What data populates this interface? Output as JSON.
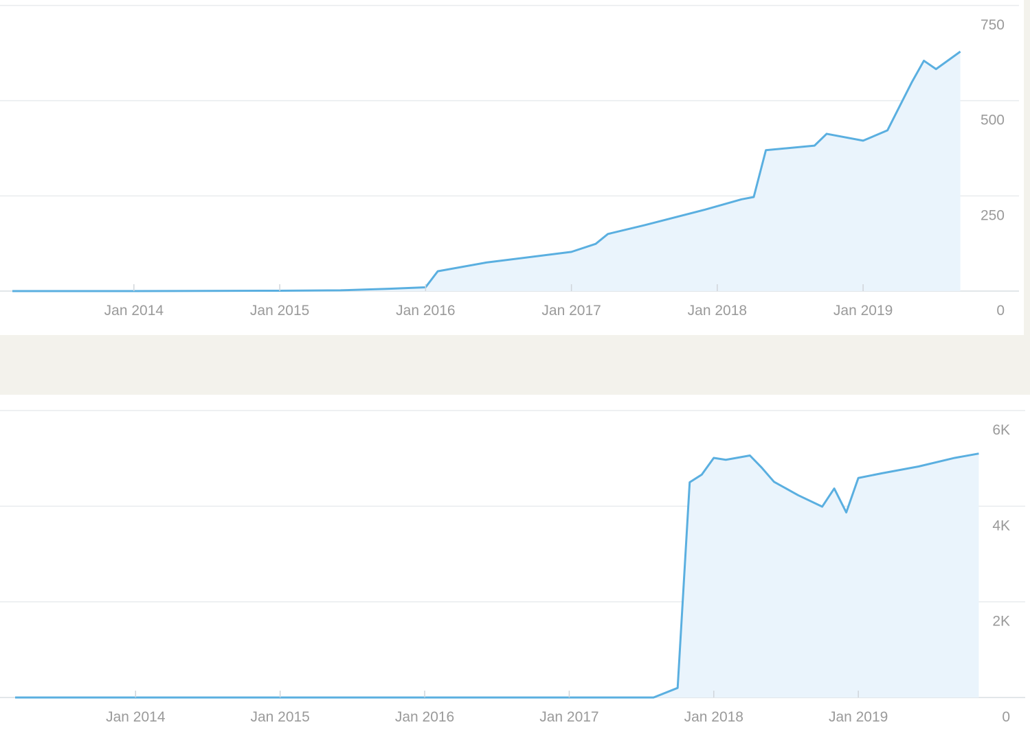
{
  "chart_data": [
    {
      "type": "area",
      "color": "#5aafe0",
      "fill": "#eaf4fc",
      "grid": true,
      "x": [
        "2013-03",
        "2014-01",
        "2015-01",
        "2015-06",
        "2015-10",
        "2016-01",
        "2016-02",
        "2016-06",
        "2017-01",
        "2017-03",
        "2017-04",
        "2017-07",
        "2017-12",
        "2018-03",
        "2018-04",
        "2018-05",
        "2018-09",
        "2018-10",
        "2019-01",
        "2019-03",
        "2019-04",
        "2019-05",
        "2019-06",
        "2019-07",
        "2019-09"
      ],
      "values": [
        0,
        0,
        1,
        2,
        6,
        10,
        52,
        75,
        103,
        124,
        150,
        173,
        214,
        241,
        247,
        370,
        382,
        413,
        395,
        422,
        485,
        548,
        605,
        583,
        629
      ],
      "xlim": [
        "2013-03",
        "2019-11"
      ],
      "xticks": [
        {
          "value": "2014-01",
          "label": "Jan 2014"
        },
        {
          "value": "2015-01",
          "label": "Jan 2015"
        },
        {
          "value": "2016-01",
          "label": "Jan 2016"
        },
        {
          "value": "2017-01",
          "label": "Jan 2017"
        },
        {
          "value": "2018-01",
          "label": "Jan 2018"
        },
        {
          "value": "2019-01",
          "label": "Jan 2019"
        }
      ],
      "ylim": [
        0,
        750
      ],
      "yticks": [
        0,
        250,
        500,
        750
      ]
    },
    {
      "type": "area",
      "color": "#5aafe0",
      "fill": "#eaf4fc",
      "grid": true,
      "x": [
        "2013-03",
        "2017-08",
        "2017-10",
        "2017-11",
        "2017-12",
        "2018-01",
        "2018-02",
        "2018-04",
        "2018-05",
        "2018-06",
        "2018-08",
        "2018-10",
        "2018-11",
        "2018-12",
        "2019-01",
        "2019-03",
        "2019-06",
        "2019-09",
        "2019-11"
      ],
      "values": [
        0,
        0,
        200,
        4500,
        4660,
        5010,
        4970,
        5060,
        4800,
        4510,
        4230,
        3990,
        4370,
        3870,
        4590,
        4690,
        4830,
        5010,
        5100
      ],
      "xlim": [
        "2013-03",
        "2019-12"
      ],
      "xticks": [
        {
          "value": "2014-01",
          "label": "Jan 2014"
        },
        {
          "value": "2015-01",
          "label": "Jan 2015"
        },
        {
          "value": "2016-01",
          "label": "Jan 2016"
        },
        {
          "value": "2017-01",
          "label": "Jan 2017"
        },
        {
          "value": "2018-01",
          "label": "Jan 2018"
        },
        {
          "value": "2019-01",
          "label": "Jan 2019"
        }
      ],
      "ylim": [
        0,
        6000
      ],
      "yticks": [
        0,
        {
          "value": 2000,
          "label": "2K"
        },
        {
          "value": 4000,
          "label": "4K"
        },
        {
          "value": 6000,
          "label": "6K"
        }
      ]
    }
  ]
}
